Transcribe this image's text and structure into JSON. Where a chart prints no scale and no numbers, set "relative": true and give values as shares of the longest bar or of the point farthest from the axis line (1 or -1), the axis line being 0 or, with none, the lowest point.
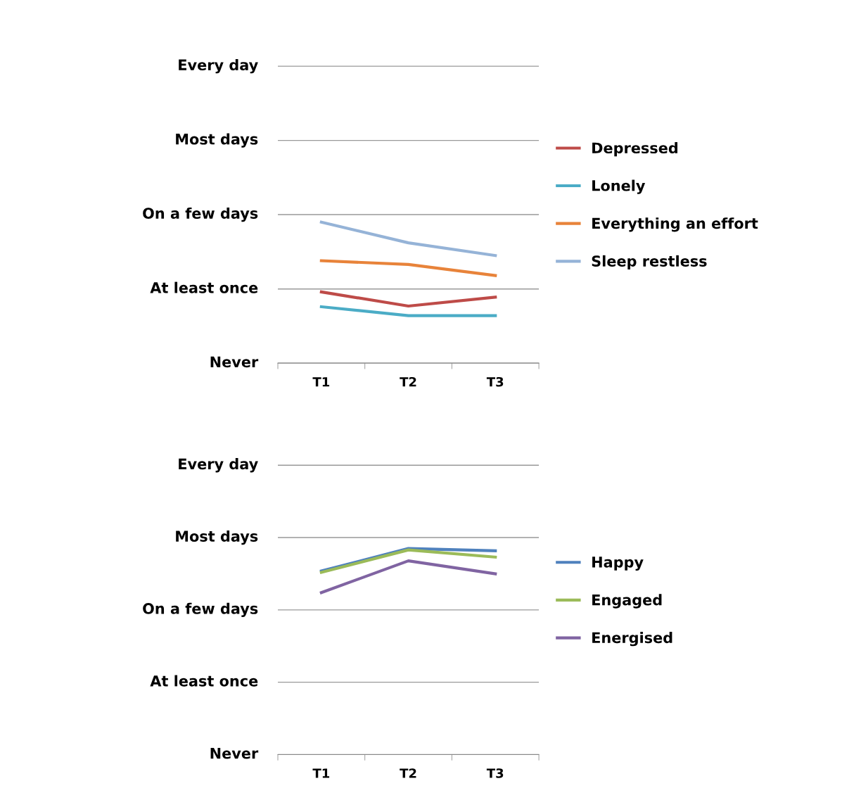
{
  "chart_data": [
    {
      "type": "line",
      "categories": [
        "T1",
        "T2",
        "T3"
      ],
      "relative": true,
      "legend": "right",
      "marker": "none",
      "ref_lines": [
        {
          "axis": "y",
          "value": 0,
          "label": "Never"
        },
        {
          "axis": "y",
          "value": 0.526,
          "label": "At least once"
        },
        {
          "axis": "y",
          "value": 1.053,
          "label": "On a few days"
        },
        {
          "axis": "y",
          "value": 1.579,
          "label": "Most days"
        },
        {
          "axis": "y",
          "value": 2.105,
          "label": "Every day"
        }
      ],
      "series": [
        {
          "name": "Depressed",
          "color": "#be4b48",
          "values": [
            0.505,
            0.405,
            0.468
          ]
        },
        {
          "name": "Lonely",
          "color": "#4bacc6",
          "values": [
            0.4,
            0.337,
            0.337
          ]
        },
        {
          "name": "Everything an effort",
          "color": "#e8833a",
          "values": [
            0.726,
            0.7,
            0.621
          ]
        },
        {
          "name": "Sleep restless",
          "color": "#95b3d7",
          "values": [
            1,
            0.853,
            0.763
          ]
        }
      ]
    },
    {
      "type": "line",
      "categories": [
        "T1",
        "T2",
        "T3"
      ],
      "relative": true,
      "legend": "right",
      "marker": "none",
      "ref_lines": [
        {
          "axis": "y",
          "value": 0,
          "label": "Never"
        },
        {
          "axis": "y",
          "value": 0.351,
          "label": "At least once"
        },
        {
          "axis": "y",
          "value": 0.702,
          "label": "On a few days"
        },
        {
          "axis": "y",
          "value": 1.053,
          "label": "Most days"
        },
        {
          "axis": "y",
          "value": 1.404,
          "label": "Every day"
        }
      ],
      "series": [
        {
          "name": "Happy",
          "color": "#4f81bd",
          "values": [
            0.891,
            1,
            0.989
          ]
        },
        {
          "name": "Engaged",
          "color": "#9bbb59",
          "values": [
            0.884,
            0.993,
            0.958
          ]
        },
        {
          "name": "Energised",
          "color": "#8064a2",
          "values": [
            0.786,
            0.94,
            0.877
          ]
        }
      ]
    }
  ]
}
